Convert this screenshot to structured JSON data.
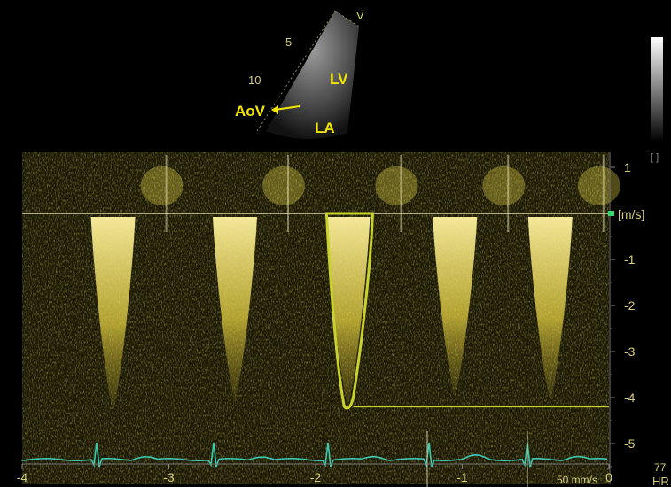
{
  "echo_inset": {
    "depth_marks": [
      "5",
      "10"
    ],
    "sector_marker": "V",
    "labels": {
      "lv": "LV",
      "aov": "AoV",
      "la": "LA"
    }
  },
  "doppler": {
    "velocity_axis": {
      "unit": "[m/s]",
      "ticks": [
        1,
        -1,
        -2,
        -3,
        -4,
        -5
      ],
      "range": [
        1.3,
        -5.6
      ]
    },
    "time_axis": {
      "ticks": [
        "-4",
        "-3",
        "-2",
        "-1",
        "0"
      ]
    },
    "sweep_speed": "50 mm/s",
    "heart_rate": {
      "value": "77",
      "label": "HR"
    },
    "jets": [
      {
        "time": -3.38,
        "peak_velocity": -4.3
      },
      {
        "time": -2.55,
        "peak_velocity": -4.1
      },
      {
        "time": -1.78,
        "peak_velocity": -4.2,
        "traced": true
      },
      {
        "time": -1.05,
        "peak_velocity": -4.0
      },
      {
        "time": -0.4,
        "peak_velocity": -4.1
      }
    ],
    "trace_peak_velocity": -4.2
  },
  "colors": {
    "spectrum": "#e8d84a",
    "trace": "#c9d22a",
    "axis_text": "#d8cf7a",
    "ecg": "#3bc9b0",
    "label_yellow": "#f2e600",
    "baseline_marker": "#2fd86a"
  }
}
